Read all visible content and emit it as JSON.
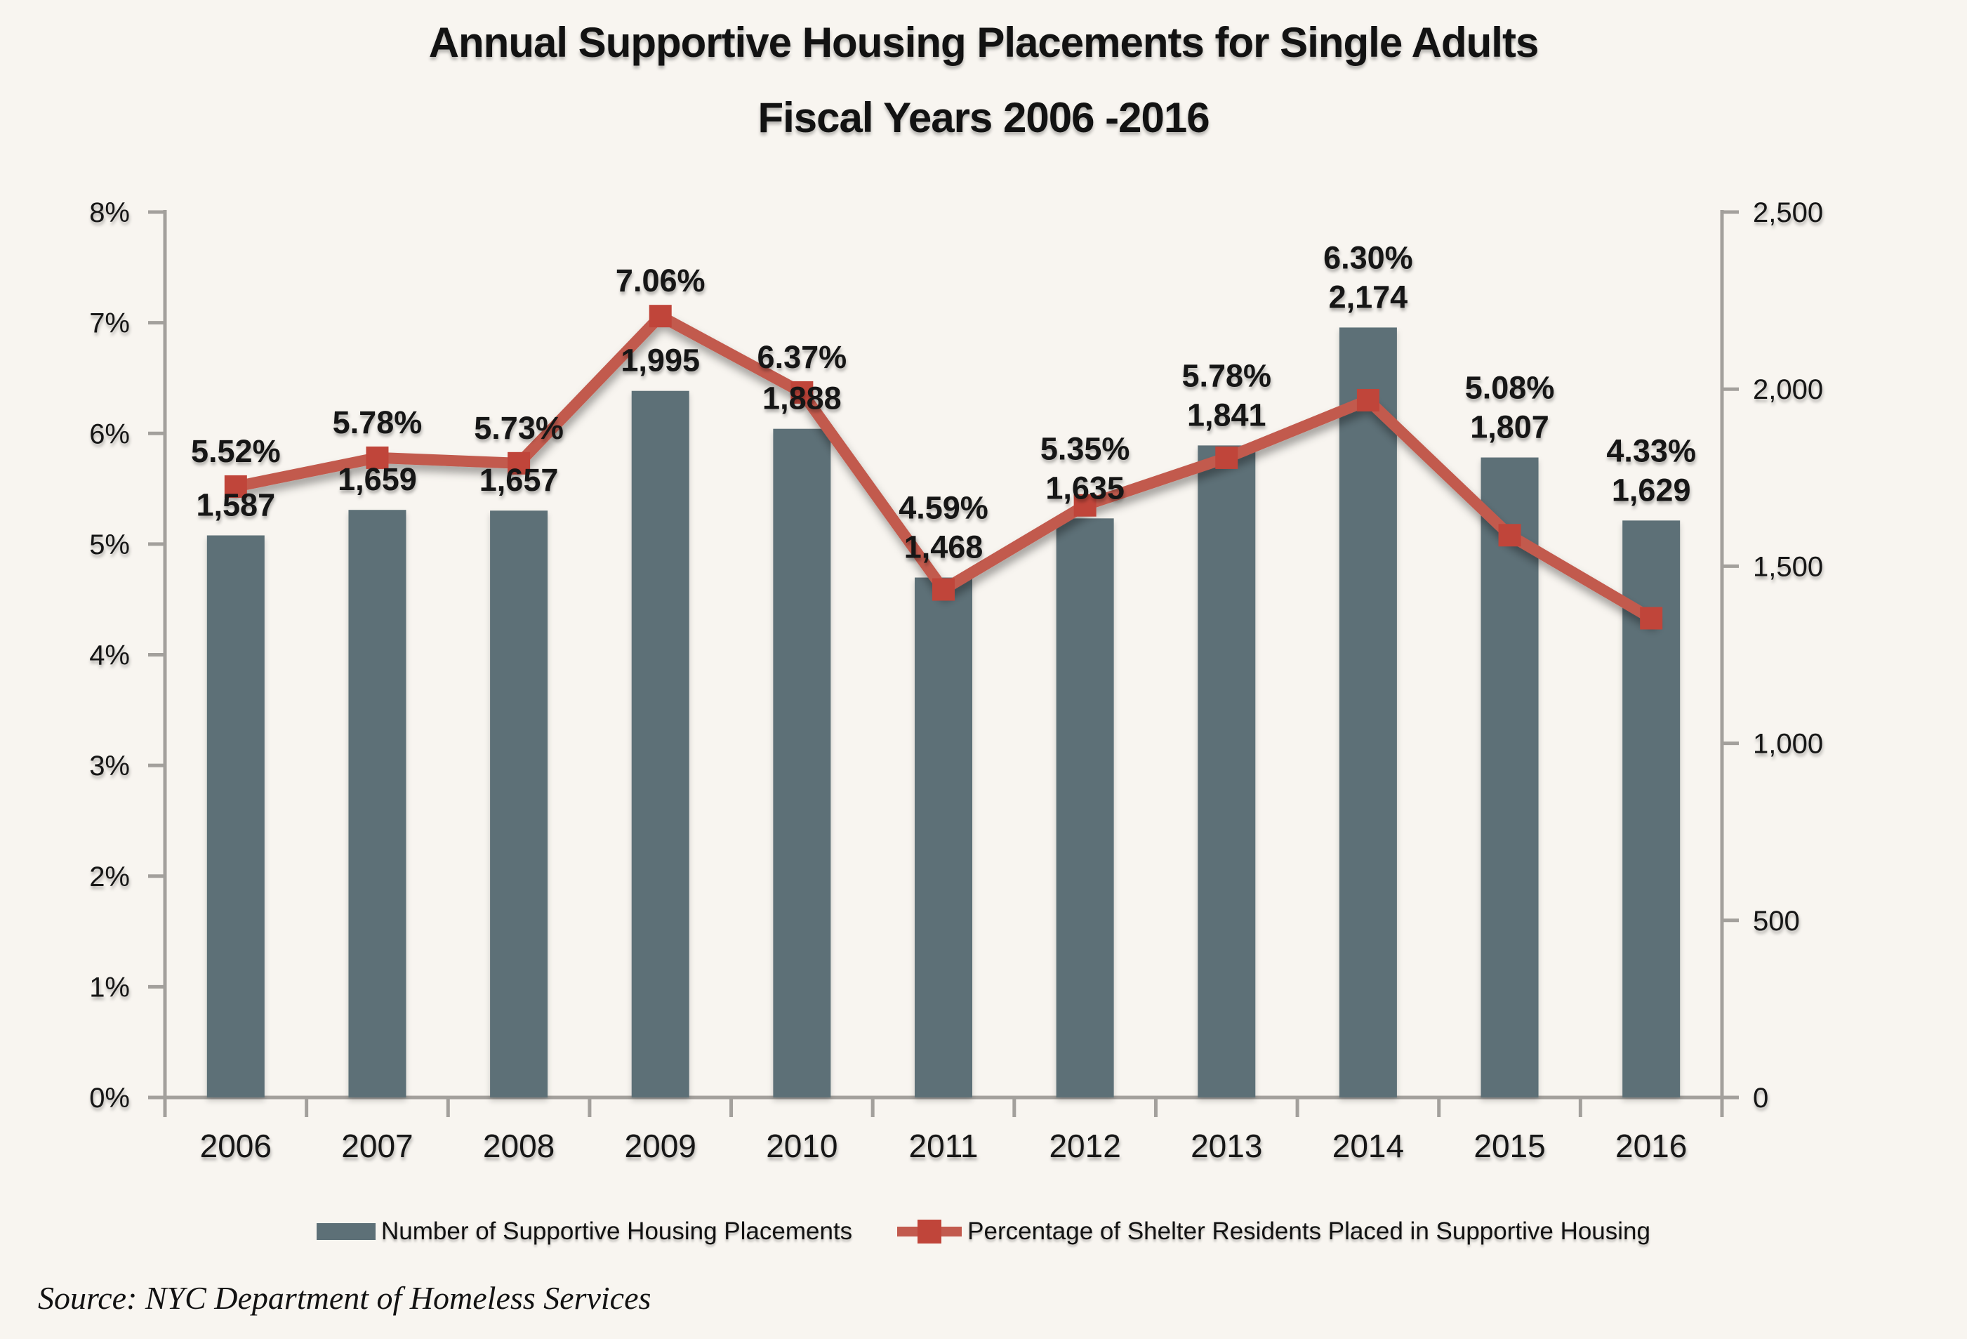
{
  "title": {
    "line1": "Annual Supportive Housing Placements for Single Adults",
    "line2": "Fiscal Years 2006 -2016"
  },
  "source": "Source:  NYC Department of Homeless Services",
  "legend": {
    "bar_label": "Number of Supportive Housing Placements",
    "line_label": "Percentage of Shelter Residents Placed in Supportive Housing"
  },
  "chart_data": {
    "type": "bar+line",
    "title": "Annual Supportive Housing Placements for Single Adults Fiscal Years 2006 -2016",
    "categories": [
      "2006",
      "2007",
      "2008",
      "2009",
      "2010",
      "2011",
      "2012",
      "2013",
      "2014",
      "2015",
      "2016"
    ],
    "series": [
      {
        "name": "Number of Supportive Housing Placements",
        "type": "bar",
        "axis": "right",
        "values": [
          1587,
          1659,
          1657,
          1995,
          1888,
          1468,
          1635,
          1841,
          2174,
          1807,
          1629
        ],
        "labels": [
          "1,587",
          "1,659",
          "1,657",
          "1,995",
          "1,888",
          "1,468",
          "1,635",
          "1,841",
          "2,174",
          "1,807",
          "1,629"
        ]
      },
      {
        "name": "Percentage of Shelter Residents Placed in Supportive Housing",
        "type": "line",
        "axis": "left",
        "values": [
          5.52,
          5.78,
          5.73,
          7.06,
          6.37,
          4.59,
          5.35,
          5.78,
          6.3,
          5.08,
          4.33
        ],
        "labels": [
          "5.52%",
          "5.78%",
          "5.73%",
          "7.06%",
          "6.37%",
          "4.59%",
          "5.35%",
          "5.78%",
          "6.30%",
          "5.08%",
          "4.33%"
        ]
      }
    ],
    "left_axis": {
      "min": 0,
      "max": 8,
      "tick_step": 1,
      "tick_labels": [
        "0%",
        "1%",
        "2%",
        "3%",
        "4%",
        "5%",
        "6%",
        "7%",
        "8%"
      ]
    },
    "right_axis": {
      "min": 0,
      "max": 2500,
      "tick_step": 500,
      "tick_labels": [
        "0",
        "500",
        "1,000",
        "1,500",
        "2,000",
        "2,500"
      ]
    },
    "legend_position": "bottom",
    "grid": false,
    "colors": {
      "background": "#f8f5f0",
      "bar": "#5d7077",
      "line": "#c25a4e",
      "marker": "#c0453a",
      "axis": "#a3a09c",
      "text": "#141414"
    }
  }
}
